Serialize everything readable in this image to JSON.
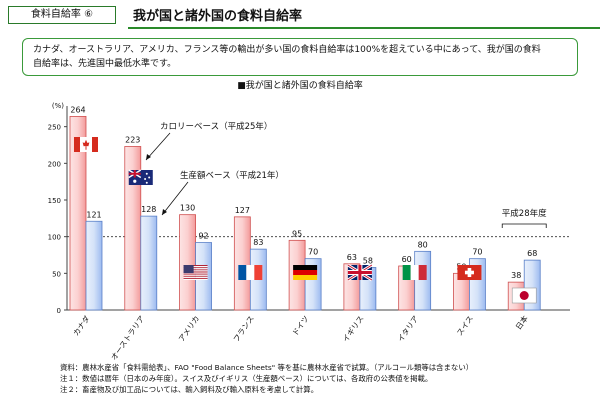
{
  "header": {
    "tag": "食料自給率 ⑥",
    "title": "我が国と諸外国の食料自給率"
  },
  "summary": {
    "line1": "カナダ、オーストラリア、アメリカ、フランス等の輸出が多い国の食料自給率は100%を超えている中にあって、我が国の食料",
    "line2": "自給率は、先進国中最低水準です。"
  },
  "chart_data": {
    "type": "bar",
    "title": "■我が国と諸外国の食料自給率",
    "ylabel": "(%)",
    "ylim": [
      0,
      270
    ],
    "yticks": [
      0,
      50,
      100,
      150,
      200,
      250
    ],
    "reference_line": 100,
    "categories": [
      "カナダ",
      "オーストラリア",
      "アメリカ",
      "フランス",
      "ドイツ",
      "イギリス",
      "イタリア",
      "スイス",
      "日本"
    ],
    "series": [
      {
        "name": "カロリーベース（平成25年）",
        "values": [
          264,
          223,
          130,
          127,
          95,
          63,
          60,
          50,
          38
        ],
        "color": "#f4a0a0"
      },
      {
        "name": "生産額ベース（平成21年）",
        "values": [
          121,
          128,
          92,
          83,
          70,
          58,
          80,
          70,
          68
        ],
        "color": "#a8c4f0"
      }
    ],
    "annotations": {
      "japan": "平成28年度"
    }
  },
  "flags": [
    "canada-flag-icon",
    "australia-flag-icon",
    "usa-flag-icon",
    "france-flag-icon",
    "germany-flag-icon",
    "uk-flag-icon",
    "italy-flag-icon",
    "switzerland-flag-icon",
    "japan-flag-icon"
  ],
  "notes": {
    "line1": "資料：農林水産省「食料需給表」、FAO \"Food Balance Sheets\" 等を基に農林水産省で試算。（アルコール類等は含まない）",
    "line2": "注１：数値は暦年（日本のみ年度）。スイス及びイギリス（生産額ベース）については、各政府の公表値を掲載。",
    "line3": "注２：畜産物及び加工品については、輸入飼料及び輸入原料を考慮して計算。"
  }
}
